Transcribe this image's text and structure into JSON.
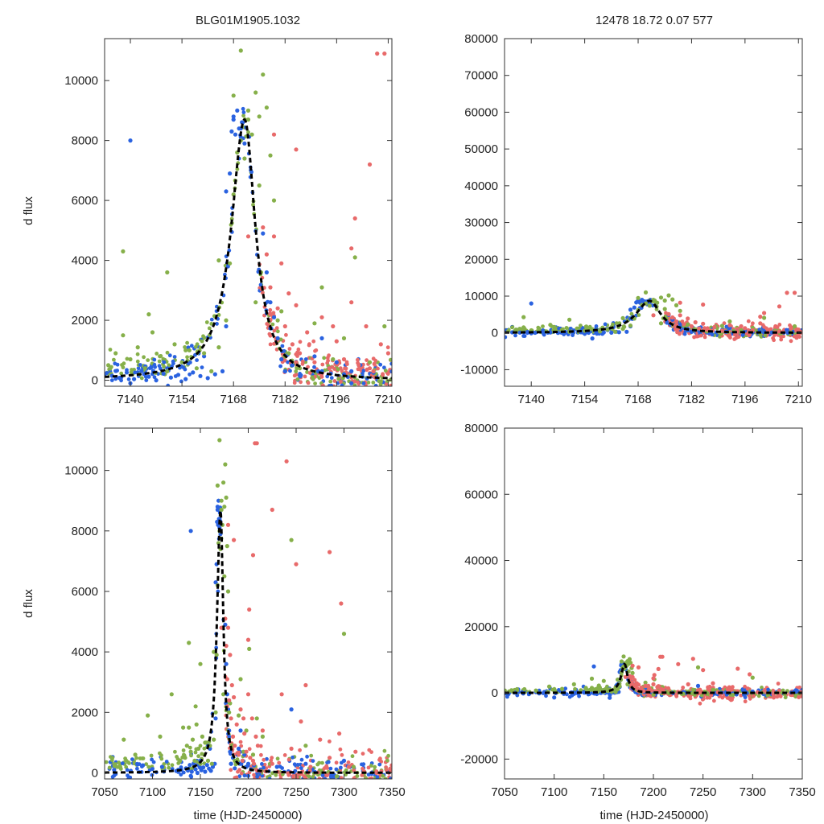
{
  "chart_data": {
    "type": "scatter",
    "event_id": "BLG01M1905.1032",
    "fit_params_text": "12478  18.72  0.07  577",
    "colors": {
      "model": "#000000",
      "series_a": "#2a62e0",
      "series_b": "#86b04a",
      "series_c": "#e86a6a",
      "frame": "#333333"
    },
    "model_params": {
      "peak": 8700,
      "t0": 7171,
      "width_left": 5.5,
      "width_right": 4.5,
      "baseline": 0
    },
    "panels": [
      {
        "id": "top-left",
        "title": "BLG01M1905.1032",
        "xlim": [
          7133,
          7211
        ],
        "ylim": [
          -200,
          11400
        ],
        "xticks": [
          7140,
          7154,
          7168,
          7182,
          7196,
          7210
        ],
        "xtick_labels": [
          "7140",
          "7154",
          "7168",
          "7182",
          "7196",
          "7210"
        ],
        "yticks": [
          0,
          2000,
          4000,
          6000,
          8000,
          10000
        ],
        "ytick_labels": [
          "0",
          "2000",
          "4000",
          "6000",
          "8000",
          "10000"
        ],
        "xlabel": "",
        "ylabel": "d flux"
      },
      {
        "id": "top-right",
        "title": "12478  18.72  0.07  577",
        "xlim": [
          7133,
          7211
        ],
        "ylim": [
          -14500,
          80000
        ],
        "xticks": [
          7140,
          7154,
          7168,
          7182,
          7196,
          7210
        ],
        "xtick_labels": [
          "7140",
          "7154",
          "7168",
          "7182",
          "7196",
          "7210"
        ],
        "yticks": [
          -10000,
          0,
          10000,
          20000,
          30000,
          40000,
          50000,
          60000,
          70000,
          80000
        ],
        "ytick_labels": [
          "-10000",
          "0",
          "10000",
          "20000",
          "30000",
          "40000",
          "50000",
          "60000",
          "70000",
          "80000"
        ],
        "xlabel": "",
        "ylabel": ""
      },
      {
        "id": "bottom-left",
        "title": "",
        "xlim": [
          7050,
          7350
        ],
        "ylim": [
          -200,
          11400
        ],
        "xticks": [
          7050,
          7100,
          7150,
          7200,
          7250,
          7300,
          7350
        ],
        "xtick_labels": [
          "7050",
          "7100",
          "7150",
          "7200",
          "7250",
          "7300",
          "7350"
        ],
        "yticks": [
          0,
          2000,
          4000,
          6000,
          8000,
          10000
        ],
        "ytick_labels": [
          "0",
          "2000",
          "4000",
          "6000",
          "8000",
          "10000"
        ],
        "xlabel": "time (HJD-2450000)",
        "ylabel": "d flux"
      },
      {
        "id": "bottom-right",
        "title": "",
        "xlim": [
          7050,
          7350
        ],
        "ylim": [
          -26000,
          80000
        ],
        "xticks": [
          7050,
          7100,
          7150,
          7200,
          7250,
          7300,
          7350
        ],
        "xtick_labels": [
          "7050",
          "7100",
          "7150",
          "7200",
          "7250",
          "7300",
          "7350"
        ],
        "yticks": [
          -20000,
          0,
          20000,
          40000,
          60000,
          80000
        ],
        "ytick_labels": [
          "-20000",
          "0",
          "20000",
          "40000",
          "60000",
          "80000"
        ],
        "xlabel": "time (HJD-2450000)",
        "ylabel": ""
      }
    ],
    "series": [
      {
        "name": "blue",
        "color": "#2a62e0",
        "points": [
          [
            7135,
            150
          ],
          [
            7137,
            80
          ],
          [
            7139,
            260
          ],
          [
            7141,
            40
          ],
          [
            7143,
            310
          ],
          [
            7145,
            120
          ],
          [
            7147,
            0
          ],
          [
            7149,
            220
          ],
          [
            7151,
            90
          ],
          [
            7153,
            180
          ],
          [
            7155,
            40
          ],
          [
            7157,
            260
          ],
          [
            7159,
            140
          ],
          [
            7161,
            70
          ],
          [
            7163,
            200
          ],
          [
            7165,
            300
          ],
          [
            7166,
            1800
          ],
          [
            7166.5,
            3800
          ],
          [
            7167,
            6900
          ],
          [
            7167.5,
            8300
          ],
          [
            7168,
            8800
          ],
          [
            7168.5,
            8200
          ],
          [
            7169,
            9000
          ],
          [
            7169.5,
            8400
          ],
          [
            7170,
            8100
          ],
          [
            7170.5,
            8600
          ],
          [
            7171,
            7900
          ],
          [
            7176,
            4900
          ],
          [
            7177,
            3600
          ],
          [
            7178,
            2600
          ],
          [
            7179,
            2100
          ],
          [
            7180,
            1400
          ],
          [
            7181,
            700
          ],
          [
            7182,
            300
          ],
          [
            7184,
            500
          ],
          [
            7186,
            150
          ],
          [
            7190,
            800
          ],
          [
            7191,
            300
          ],
          [
            7192,
            1400
          ],
          [
            7194,
            400
          ],
          [
            7196,
            600
          ],
          [
            7198,
            200
          ],
          [
            7200,
            300
          ],
          [
            7203,
            120
          ],
          [
            7206,
            250
          ],
          [
            7060,
            100
          ],
          [
            7075,
            -200
          ],
          [
            7090,
            250
          ],
          [
            7100,
            -1400
          ],
          [
            7110,
            200
          ],
          [
            7120,
            -300
          ],
          [
            7130,
            100
          ],
          [
            7140,
            -100
          ],
          [
            7150,
            400
          ],
          [
            7156,
            -1500
          ],
          [
            7160,
            800
          ],
          [
            7166,
            6300
          ],
          [
            7168,
            8700
          ],
          [
            7170,
            8400
          ],
          [
            7182,
            300
          ],
          [
            7200,
            -100
          ],
          [
            7230,
            200
          ],
          [
            7245,
            2100
          ],
          [
            7260,
            300
          ],
          [
            7280,
            -200
          ],
          [
            7300,
            400
          ],
          [
            7140,
            8000
          ]
        ]
      },
      {
        "name": "green",
        "color": "#86b04a",
        "points": [
          [
            7134,
            500
          ],
          [
            7136,
            900
          ],
          [
            7138,
            1500
          ],
          [
            7140,
            700
          ],
          [
            7142,
            1100
          ],
          [
            7144,
            400
          ],
          [
            7146,
            1600
          ],
          [
            7148,
            800
          ],
          [
            7150,
            300
          ],
          [
            7152,
            1200
          ],
          [
            7154,
            600
          ],
          [
            7156,
            1000
          ],
          [
            7158,
            400
          ],
          [
            7160,
            900
          ],
          [
            7162,
            300
          ],
          [
            7164,
            1100
          ],
          [
            7166,
            2000
          ],
          [
            7167,
            3900
          ],
          [
            7168,
            6200
          ],
          [
            7169,
            7600
          ],
          [
            7170,
            8000
          ],
          [
            7171,
            7400
          ],
          [
            7172,
            8700
          ],
          [
            7173,
            8200
          ],
          [
            7174,
            9600
          ],
          [
            7175,
            8800
          ],
          [
            7176,
            10200
          ],
          [
            7177,
            9100
          ],
          [
            7178,
            7500
          ],
          [
            7179,
            6000
          ],
          [
            7181,
            2300
          ],
          [
            7183,
            900
          ],
          [
            7186,
            400
          ],
          [
            7190,
            1900
          ],
          [
            7192,
            3100
          ],
          [
            7195,
            700
          ],
          [
            7198,
            1400
          ],
          [
            7201,
            4100
          ],
          [
            7205,
            600
          ],
          [
            7209,
            1800
          ],
          [
            7174,
            2600
          ],
          [
            7138,
            4300
          ],
          [
            7150,
            3600
          ],
          [
            7058,
            500
          ],
          [
            7070,
            1100
          ],
          [
            7082,
            600
          ],
          [
            7095,
            1900
          ],
          [
            7108,
            1200
          ],
          [
            7120,
            2600
          ],
          [
            7132,
            1500
          ],
          [
            7145,
            2200
          ],
          [
            7155,
            1000
          ],
          [
            7164,
            4000
          ],
          [
            7168,
            9500
          ],
          [
            7170,
            11000
          ],
          [
            7172,
            9000
          ],
          [
            7175,
            6500
          ],
          [
            7180,
            2000
          ],
          [
            7200,
            -500
          ],
          [
            7215,
            1200
          ],
          [
            7230,
            -300
          ],
          [
            7245,
            7700
          ],
          [
            7260,
            900
          ],
          [
            7280,
            -600
          ],
          [
            7300,
            4600
          ],
          [
            7310,
            200
          ]
        ]
      },
      {
        "name": "red",
        "color": "#e86a6a",
        "points": [
          [
            7176,
            5100
          ],
          [
            7177,
            4200
          ],
          [
            7178,
            3100
          ],
          [
            7179,
            4800
          ],
          [
            7180,
            2400
          ],
          [
            7181,
            3900
          ],
          [
            7182,
            1800
          ],
          [
            7183,
            2900
          ],
          [
            7184,
            1200
          ],
          [
            7185,
            2500
          ],
          [
            7186,
            900
          ],
          [
            7188,
            1600
          ],
          [
            7190,
            600
          ],
          [
            7192,
            2100
          ],
          [
            7194,
            400
          ],
          [
            7196,
            1300
          ],
          [
            7198,
            700
          ],
          [
            7200,
            2600
          ],
          [
            7202,
            500
          ],
          [
            7204,
            1800
          ],
          [
            7206,
            300
          ],
          [
            7208,
            1200
          ],
          [
            7210,
            900
          ],
          [
            7179,
            8200
          ],
          [
            7201,
            5400
          ],
          [
            7205,
            7200
          ],
          [
            7207,
            10900
          ],
          [
            7209,
            10900
          ],
          [
            7185,
            7700
          ],
          [
            7172,
            4800
          ],
          [
            7178,
            2200
          ],
          [
            7185,
            600
          ],
          [
            7195,
            1800
          ],
          [
            7205,
            400
          ],
          [
            7215,
            1400
          ],
          [
            7225,
            300
          ],
          [
            7235,
            2600
          ],
          [
            7245,
            800
          ],
          [
            7255,
            1700
          ],
          [
            7265,
            200
          ],
          [
            7275,
            1100
          ],
          [
            7285,
            500
          ],
          [
            7295,
            1300
          ],
          [
            7305,
            200
          ],
          [
            7312,
            700
          ],
          [
            7200,
            4400
          ],
          [
            7225,
            8700
          ],
          [
            7240,
            10300
          ],
          [
            7250,
            6900
          ],
          [
            7285,
            7300
          ],
          [
            7297,
            5600
          ],
          [
            7260,
            2900
          ]
        ]
      }
    ]
  }
}
